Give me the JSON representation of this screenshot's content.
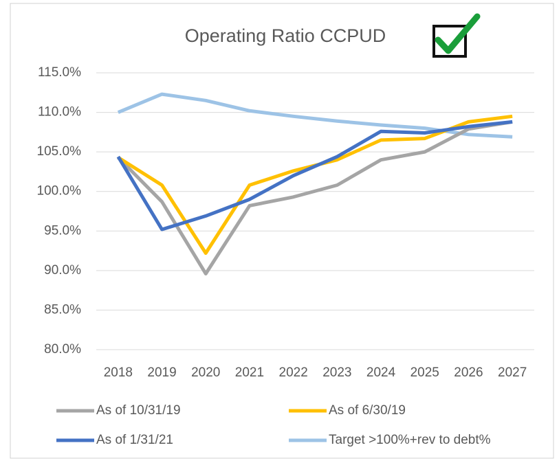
{
  "chart_data": {
    "type": "line",
    "title": "Operating Ratio CCPUD",
    "categories": [
      "2018",
      "2019",
      "2020",
      "2021",
      "2022",
      "2023",
      "2024",
      "2025",
      "2026",
      "2027"
    ],
    "series": [
      {
        "name": "As of 10/31/19",
        "color": "#a5a5a5",
        "values": [
          104.3,
          98.7,
          89.6,
          98.2,
          99.3,
          100.8,
          104.0,
          105.0,
          107.9,
          108.8
        ]
      },
      {
        "name": "As of 6/30/19",
        "color": "#ffc000",
        "values": [
          104.3,
          100.8,
          92.2,
          100.8,
          102.6,
          104.0,
          106.5,
          106.7,
          108.8,
          109.5
        ]
      },
      {
        "name": "As of 1/31/21",
        "color": "#4472c4",
        "values": [
          104.4,
          95.2,
          96.9,
          99.0,
          102.0,
          104.4,
          107.6,
          107.4,
          108.2,
          108.8
        ]
      },
      {
        "name": "Target >100%+rev to debt%",
        "color": "#9dc3e6",
        "values": [
          110.0,
          112.3,
          111.5,
          110.2,
          109.5,
          108.9,
          108.4,
          108.0,
          107.2,
          106.9
        ]
      }
    ],
    "ylim": [
      80,
      115
    ],
    "yticks": [
      {
        "value": 80,
        "label": "80.0%"
      },
      {
        "value": 85,
        "label": "85.0%"
      },
      {
        "value": 90,
        "label": "90.0%"
      },
      {
        "value": 95,
        "label": "95.0%"
      },
      {
        "value": 100,
        "label": "100.0%"
      },
      {
        "value": 105,
        "label": "105.0%"
      },
      {
        "value": 110,
        "label": "110.0%"
      },
      {
        "value": 115,
        "label": "115.0%"
      }
    ],
    "grid": true
  }
}
